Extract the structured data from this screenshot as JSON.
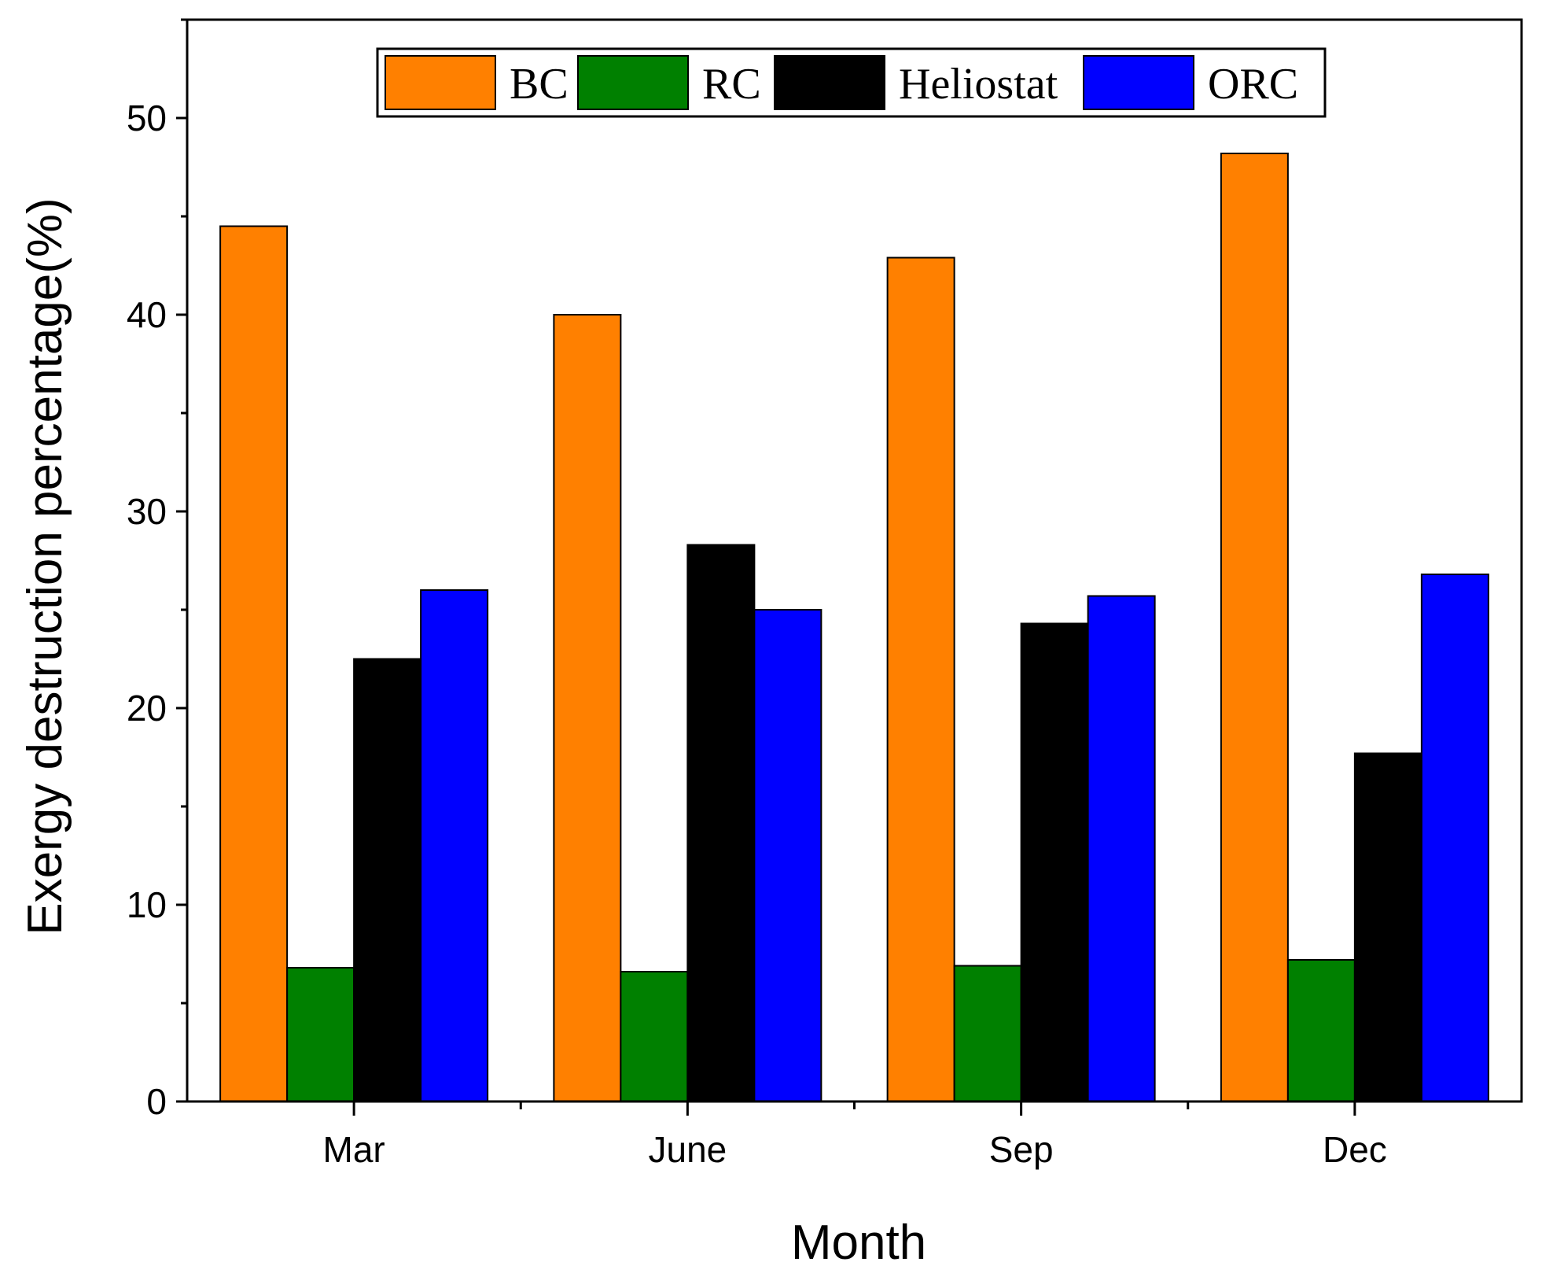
{
  "chart_data": {
    "type": "bar",
    "title": "",
    "xlabel": "Month",
    "ylabel": "Exergy destruction percentage(%)",
    "ylim": [
      0,
      55
    ],
    "yticks": [
      0,
      10,
      20,
      30,
      40,
      50
    ],
    "categories": [
      "Mar",
      "June",
      "Sep",
      "Dec"
    ],
    "series": [
      {
        "name": "BC",
        "color": "#ff8000",
        "values": [
          44.5,
          40.0,
          42.9,
          48.2
        ]
      },
      {
        "name": "RC",
        "color": "#008000",
        "values": [
          6.8,
          6.6,
          6.9,
          7.2
        ]
      },
      {
        "name": "Heliostat",
        "color": "#000000",
        "values": [
          22.5,
          28.3,
          24.3,
          17.7
        ]
      },
      {
        "name": "ORC",
        "color": "#0000ff",
        "values": [
          26.0,
          25.0,
          25.7,
          26.8
        ]
      }
    ],
    "legend_position": "top"
  }
}
